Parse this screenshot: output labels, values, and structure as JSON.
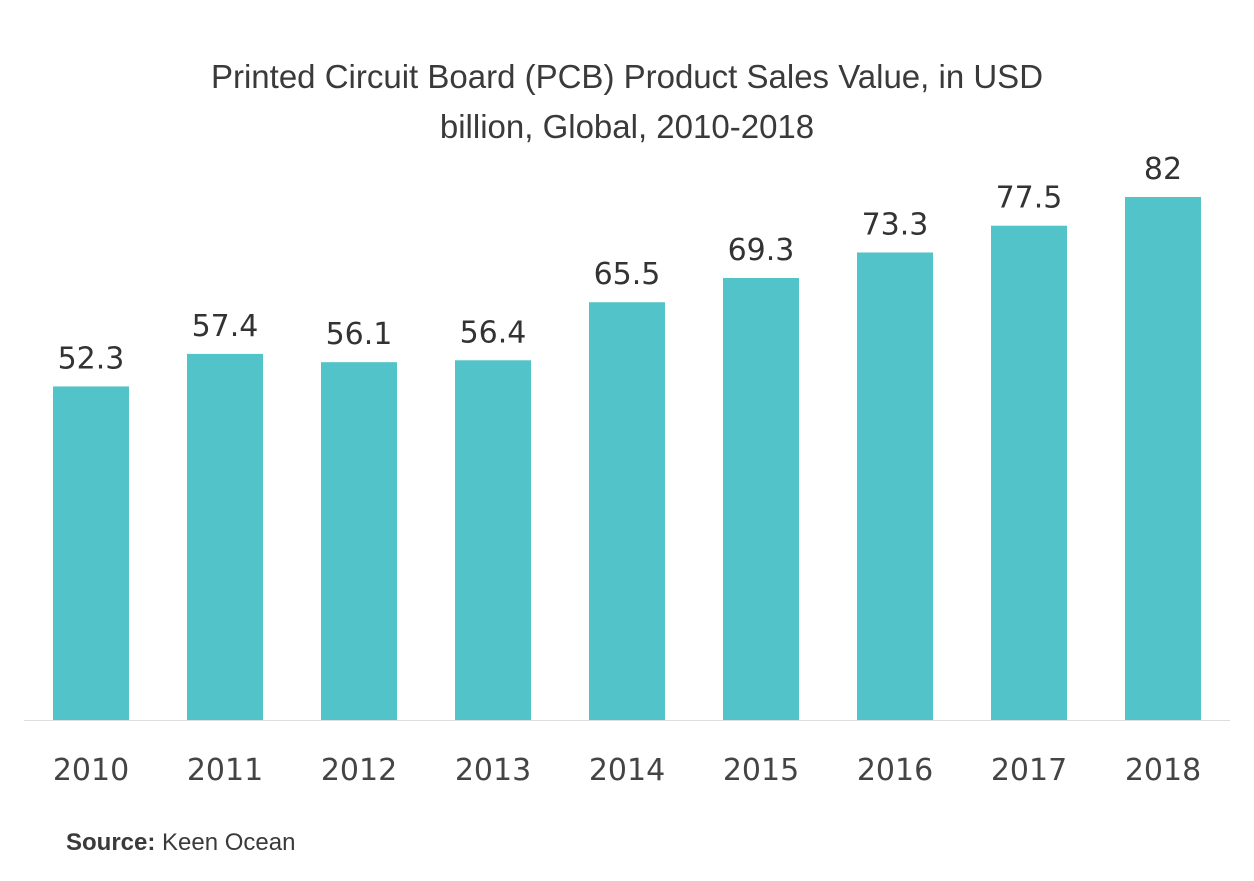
{
  "chart_data": {
    "type": "bar",
    "title_lines": [
      "Printed Circuit Board (PCB) Product Sales Value, in USD",
      "billion, Global, 2010-2018"
    ],
    "categories": [
      "2010",
      "2011",
      "2012",
      "2013",
      "2014",
      "2015",
      "2016",
      "2017",
      "2018"
    ],
    "values": [
      52.3,
      57.4,
      56.1,
      56.4,
      65.5,
      69.3,
      73.3,
      77.5,
      82
    ],
    "value_labels": [
      "52.3",
      "57.4",
      "56.1",
      "56.4",
      "65.5",
      "69.3",
      "73.3",
      "77.5",
      "82"
    ],
    "xlabel": "",
    "ylabel": "",
    "ylim": [
      0,
      82
    ],
    "grid": false,
    "legend": "none",
    "bar_color": "#52c3c8",
    "axis_color": "#dddddd"
  },
  "source": {
    "label": "Source:",
    "text": " Keen Ocean"
  }
}
